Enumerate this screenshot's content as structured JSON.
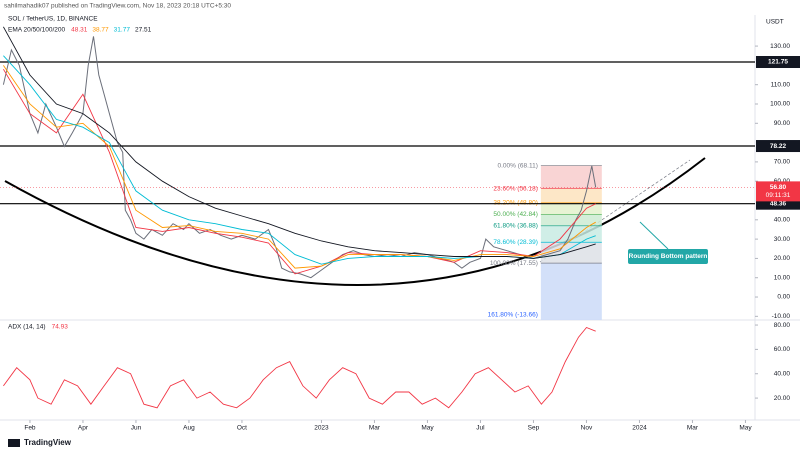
{
  "publisher": "sahilmahadik07 published on TradingView.com, Nov 18, 2023 20:18 UTC+5:30",
  "footer": "TradingView",
  "chart_data": [
    {
      "type": "line",
      "title": "SOL / TetherUS, 1D, BINANCE",
      "currency": "USDT",
      "indicator_label": "EMA 20/50/100/200",
      "xlim": [
        -0.13,
        28.36
      ],
      "xticks": [
        {
          "value": 1,
          "label": "Feb"
        },
        {
          "value": 3,
          "label": "Apr"
        },
        {
          "value": 5,
          "label": "Jun"
        },
        {
          "value": 7,
          "label": "Aug"
        },
        {
          "value": 9,
          "label": "Oct"
        },
        {
          "value": 12,
          "label": "2023"
        },
        {
          "value": 14,
          "label": "Mar"
        },
        {
          "value": 16,
          "label": "May"
        },
        {
          "value": 18,
          "label": "Jul"
        },
        {
          "value": 20,
          "label": "Sep"
        },
        {
          "value": 22,
          "label": "Nov"
        },
        {
          "value": 24,
          "label": "2024"
        },
        {
          "value": 26,
          "label": "Mar"
        },
        {
          "value": 28,
          "label": "May"
        }
      ],
      "ylim": [
        -11.9,
        146.1
      ],
      "yticks": [
        {
          "value": 130,
          "label": "130.00"
        },
        {
          "value": 110,
          "label": "110.00"
        },
        {
          "value": 100,
          "label": "100.00"
        },
        {
          "value": 90,
          "label": "90.00"
        },
        {
          "value": 70,
          "label": "70.00"
        },
        {
          "value": 60,
          "label": "60.00"
        },
        {
          "value": 40,
          "label": "40.00"
        },
        {
          "value": 30,
          "label": "30.00"
        },
        {
          "value": 20,
          "label": "20.00"
        },
        {
          "value": 10,
          "label": "10.00"
        },
        {
          "value": 0,
          "label": "0.00"
        },
        {
          "value": -10,
          "label": "-10.00"
        }
      ],
      "grid": false,
      "levels": [
        121.75,
        78.22,
        48.36
      ],
      "price_label": {
        "value": 56.8,
        "label": "56.80",
        "countdown": "09:11:31",
        "color": "#f23645"
      },
      "series": [
        {
          "color": "#6b6f7a",
          "width": 1,
          "x": [
            0.0,
            0.3,
            0.6,
            1.0,
            1.3,
            1.6,
            2.0,
            2.3,
            2.6,
            3.0,
            3.2,
            3.4,
            3.6,
            3.8,
            4.0,
            4.3,
            4.5,
            4.6,
            4.8,
            5.0,
            5.3,
            5.6,
            6.0,
            6.4,
            6.8,
            7.0,
            7.4,
            7.8,
            8.2,
            8.6,
            9.0,
            9.5,
            10.0,
            10.3,
            10.5,
            10.8,
            11.2,
            11.6,
            12.0,
            12.4,
            12.8,
            13.2,
            13.6,
            14.0,
            14.5,
            15.0,
            15.5,
            16.0,
            16.5,
            17.0,
            17.3,
            17.6,
            18.0,
            18.2,
            18.5,
            19.0,
            19.5,
            20.0,
            20.5,
            21.0,
            21.3,
            21.6,
            21.8,
            22.0,
            22.2,
            22.35
          ],
          "values": [
            110,
            128,
            120,
            95,
            85,
            100,
            88,
            78,
            85,
            95,
            120,
            135,
            115,
            105,
            95,
            80,
            75,
            45,
            40,
            33,
            30,
            35,
            32,
            38,
            35,
            38,
            33,
            35,
            32,
            30,
            32,
            30,
            35,
            25,
            15,
            13,
            12,
            10,
            14,
            18,
            22,
            24,
            22,
            21,
            22,
            21,
            23,
            22,
            20,
            18,
            15,
            18,
            20,
            30,
            26,
            24,
            22,
            20,
            22,
            24,
            30,
            40,
            45,
            55,
            68,
            56.8
          ]
        },
        {
          "color": "#f23645",
          "width": 0.9,
          "x": [
            0,
            1,
            2,
            3,
            4,
            5,
            6,
            7,
            8,
            9,
            10,
            11,
            12,
            13,
            14,
            15,
            16,
            17,
            18,
            19,
            20,
            21,
            22,
            22.35
          ],
          "values": [
            118,
            95,
            85,
            105,
            75,
            36,
            34,
            36,
            33,
            31,
            28,
            12,
            16,
            23,
            22,
            22,
            21,
            18,
            24,
            23,
            21,
            30,
            46,
            48.31
          ]
        },
        {
          "color": "#ff9800",
          "width": 0.9,
          "x": [
            0,
            1,
            2,
            3,
            4,
            5,
            6,
            7,
            8,
            9,
            10,
            11,
            12,
            13,
            14,
            15,
            16,
            17,
            18,
            19,
            20,
            21,
            22,
            22.35
          ],
          "values": [
            120,
            100,
            88,
            90,
            78,
            45,
            36,
            37,
            34,
            33,
            30,
            15,
            16,
            22,
            22,
            22,
            21,
            19,
            22,
            22,
            21,
            25,
            36,
            38.77
          ]
        },
        {
          "color": "#00bcd4",
          "width": 0.9,
          "x": [
            0,
            1,
            2,
            3,
            4,
            5,
            6,
            7,
            8,
            9,
            10,
            11,
            12,
            13,
            14,
            15,
            16,
            17,
            18,
            19,
            20,
            21,
            22,
            22.35
          ],
          "values": [
            125,
            110,
            92,
            88,
            80,
            55,
            45,
            40,
            38,
            35,
            33,
            22,
            17,
            20,
            21,
            21,
            21,
            20,
            21,
            21,
            20,
            22,
            30,
            31.77
          ]
        },
        {
          "color": "#131722",
          "width": 0.9,
          "x": [
            0,
            1,
            2,
            3,
            4,
            5,
            6,
            7,
            8,
            9,
            10,
            11,
            12,
            13,
            14,
            15,
            16,
            17,
            18,
            19,
            20,
            21,
            22,
            22.35
          ],
          "values": [
            140,
            115,
            100,
            95,
            85,
            70,
            60,
            52,
            46,
            42,
            38,
            33,
            29,
            26,
            24,
            23,
            22,
            21,
            21,
            21,
            20,
            22,
            26,
            27.51
          ]
        }
      ],
      "fibonacci": {
        "x": [
          20.28,
          22.58
        ],
        "levels": [
          {
            "value": 68.11,
            "label": "0.00% (68.11)",
            "color": "#787b86",
            "fill": "#f8cccc"
          },
          {
            "value": 56.18,
            "label": "23.60% (56.18)",
            "color": "#f23645",
            "fill": "#fde3bd"
          },
          {
            "value": 48.8,
            "label": "38.20% (48.80)",
            "color": "#ff9800",
            "fill": "#e4f1cc"
          },
          {
            "value": 42.84,
            "label": "50.00% (42.84)",
            "color": "#4caf50",
            "fill": "#cdebd2"
          },
          {
            "value": 36.88,
            "label": "61.80% (36.88)",
            "color": "#089981",
            "fill": "#c8ebe3"
          },
          {
            "value": 28.39,
            "label": "78.60% (28.39)",
            "color": "#00bcd4",
            "fill": "#dde0e6"
          },
          {
            "value": 17.55,
            "label": "100.00% (17.55)",
            "color": "#787b86",
            "fill": "#cbdaf8"
          },
          {
            "value": -13.66,
            "label": "161.80% (-13.66)",
            "color": "#2962ff"
          }
        ]
      },
      "annotation": "Rounding Bottom pattern"
    },
    {
      "type": "line",
      "title": "ADX (14, 14)",
      "ylim": [
        2,
        82.5
      ],
      "yticks": [
        {
          "value": 80,
          "label": "80.00"
        },
        {
          "value": 60,
          "label": "60.00"
        },
        {
          "value": 40,
          "label": "40.00"
        },
        {
          "value": 20,
          "label": "20.00"
        }
      ],
      "series": [
        {
          "color": "#f23645",
          "width": 0.9,
          "x": [
            0,
            0.5,
            1,
            1.3,
            1.8,
            2.3,
            2.8,
            3.3,
            3.8,
            4.3,
            4.8,
            5.3,
            5.8,
            6.3,
            6.8,
            7.3,
            7.8,
            8.3,
            8.8,
            9.3,
            9.8,
            10.3,
            10.8,
            11.3,
            11.8,
            12.3,
            12.8,
            13.3,
            13.8,
            14.3,
            14.8,
            15.3,
            15.8,
            16.3,
            16.8,
            17.3,
            17.8,
            18.3,
            18.8,
            19.3,
            19.8,
            20.3,
            20.7,
            21.2,
            21.7,
            22.0,
            22.35
          ],
          "values": [
            30,
            45,
            35,
            20,
            15,
            35,
            30,
            15,
            30,
            45,
            40,
            15,
            12,
            30,
            35,
            20,
            25,
            15,
            12,
            20,
            35,
            45,
            50,
            30,
            20,
            35,
            45,
            40,
            20,
            15,
            25,
            25,
            15,
            20,
            12,
            25,
            40,
            45,
            35,
            25,
            30,
            15,
            25,
            50,
            70,
            78,
            74.93
          ]
        }
      ]
    }
  ]
}
